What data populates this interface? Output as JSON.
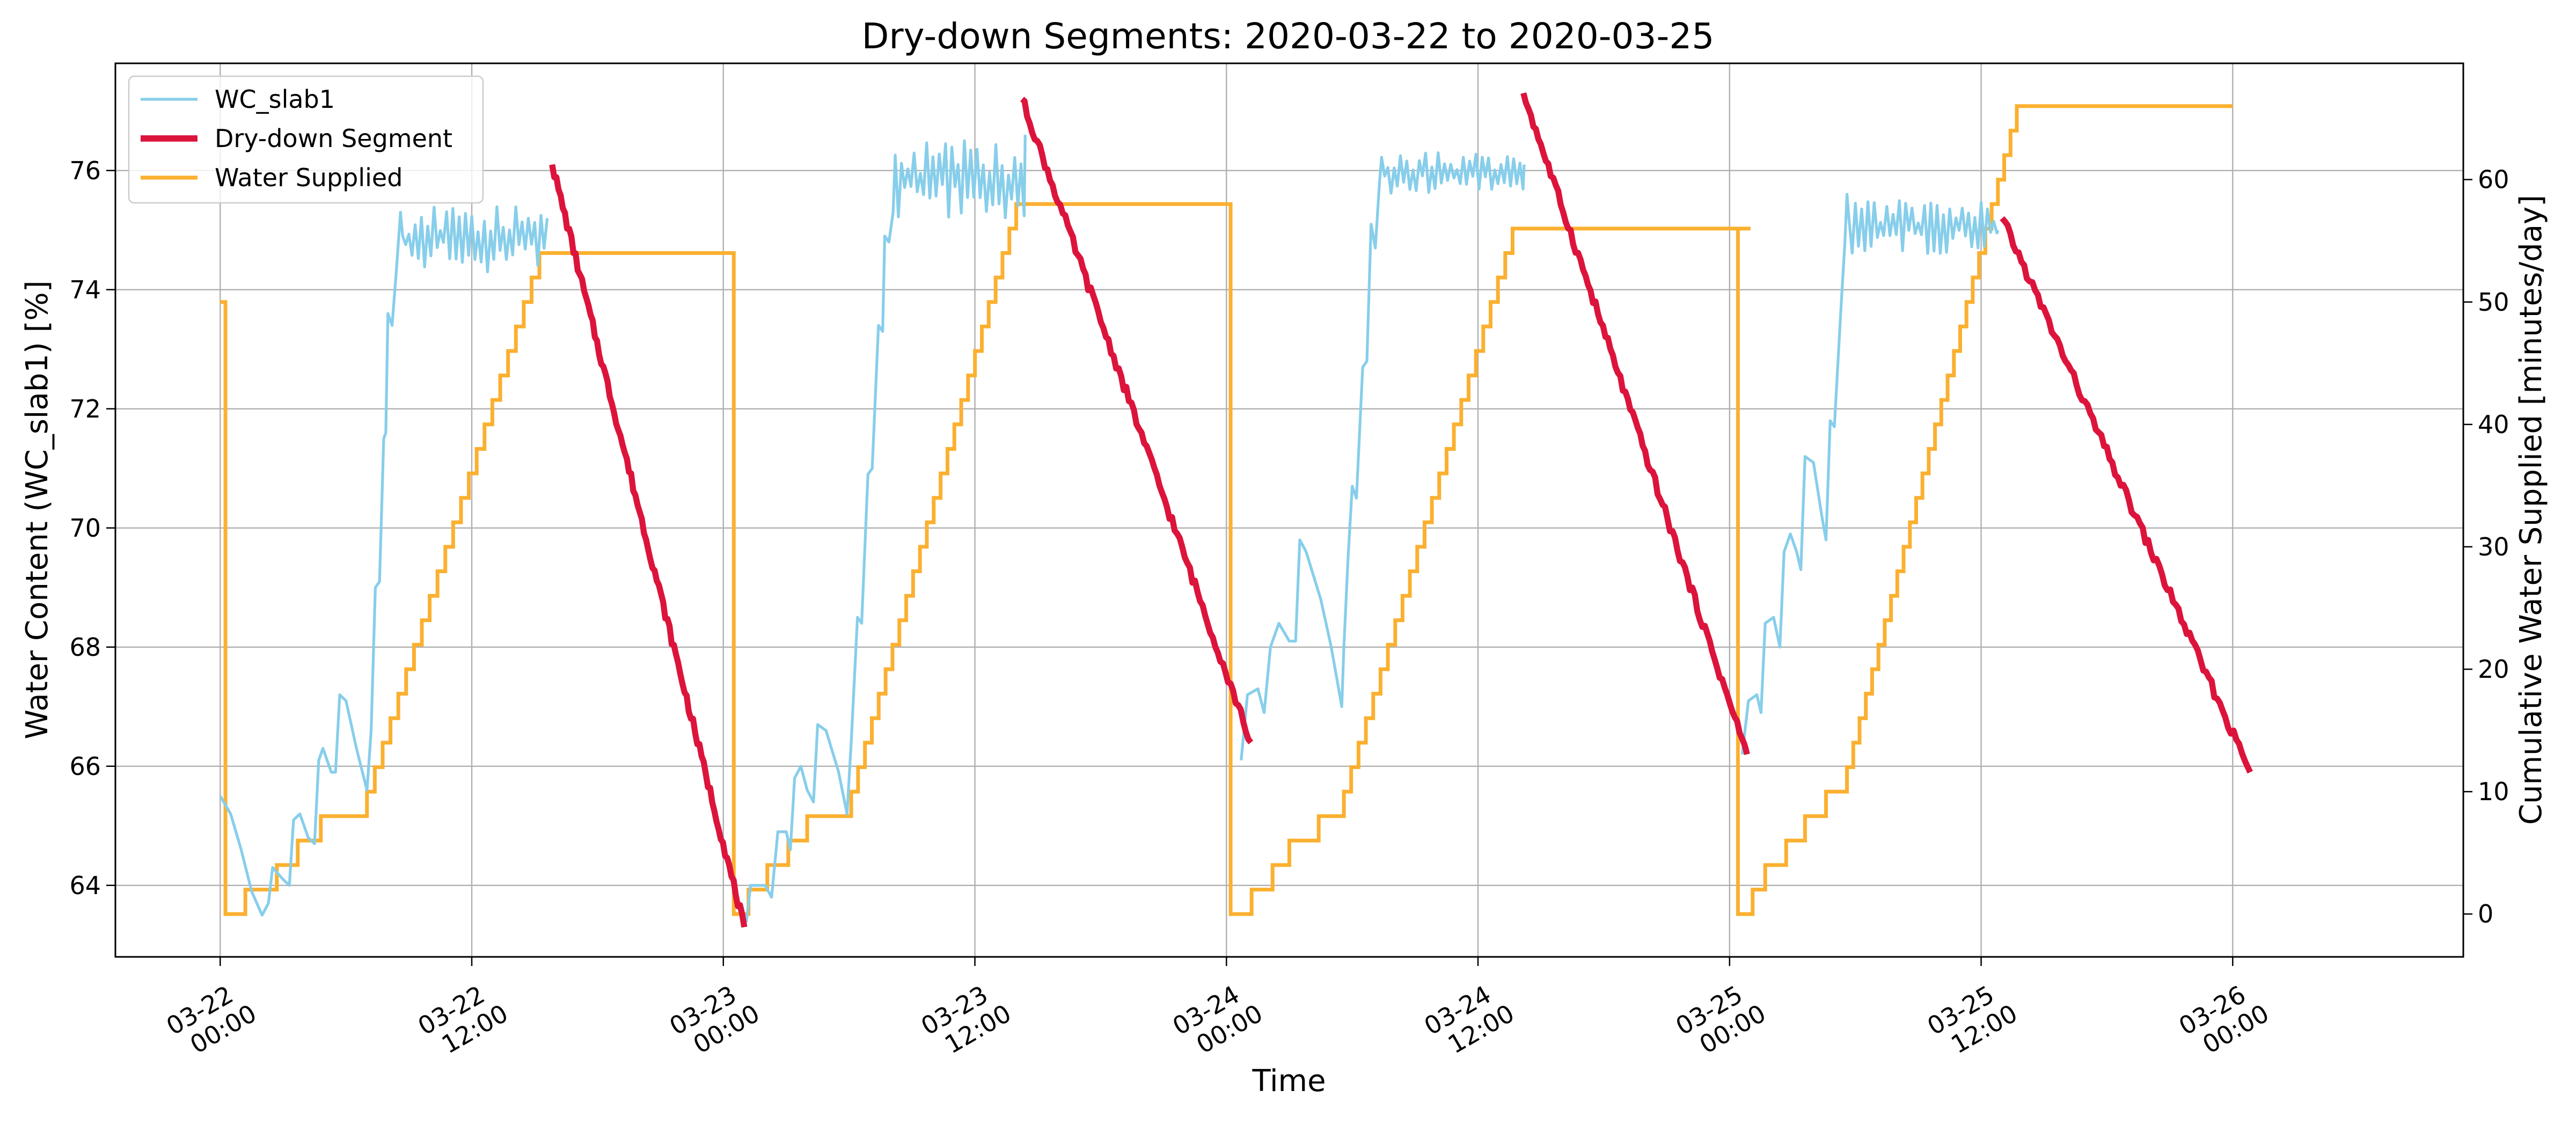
{
  "chart_data": {
    "type": "line",
    "title": "Dry-down Segments: 2020-03-22 to 2020-03-25",
    "xlabel": "Time",
    "ylabel": "Water Content (WC_slab1) [%]",
    "y2label": "Cumulative Water Supplied [minutes/day]",
    "xlim": [
      "2020-03-21 19:00",
      "2020-03-26 11:00"
    ],
    "ylim": [
      62.8,
      77.8
    ],
    "y2lim": [
      -3.5,
      69.5
    ],
    "grid": true,
    "legend_position": "upper-left",
    "x_ticks": [
      {
        "x": "2020-03-22 00:00",
        "label": [
          "03-22",
          "00:00"
        ]
      },
      {
        "x": "2020-03-22 12:00",
        "label": [
          "03-22",
          "12:00"
        ]
      },
      {
        "x": "2020-03-23 00:00",
        "label": [
          "03-23",
          "00:00"
        ]
      },
      {
        "x": "2020-03-23 12:00",
        "label": [
          "03-23",
          "12:00"
        ]
      },
      {
        "x": "2020-03-24 00:00",
        "label": [
          "03-24",
          "00:00"
        ]
      },
      {
        "x": "2020-03-24 12:00",
        "label": [
          "03-24",
          "12:00"
        ]
      },
      {
        "x": "2020-03-25 00:00",
        "label": [
          "03-25",
          "00:00"
        ]
      },
      {
        "x": "2020-03-25 12:00",
        "label": [
          "03-25",
          "12:00"
        ]
      },
      {
        "x": "2020-03-26 00:00",
        "label": [
          "03-26",
          "00:00"
        ]
      }
    ],
    "y_ticks": [
      64,
      66,
      68,
      70,
      72,
      74,
      76
    ],
    "y2_ticks": [
      0,
      10,
      20,
      30,
      40,
      50,
      60
    ],
    "series": [
      {
        "name": "WC_slab1",
        "axis": "left",
        "color": "#87ceeb",
        "line_width": 2,
        "days": [
          {
            "date": "2020-03-22",
            "pts": [
              [
                0,
                65.5
              ],
              [
                0.5,
                65.2
              ],
              [
                1.0,
                64.6
              ],
              [
                1.5,
                63.9
              ],
              [
                2.0,
                63.5
              ],
              [
                2.3,
                63.7
              ],
              [
                2.5,
                64.3
              ],
              [
                3.0,
                64.1
              ],
              [
                3.3,
                64.0
              ],
              [
                3.5,
                65.1
              ],
              [
                3.8,
                65.2
              ],
              [
                4.2,
                64.8
              ],
              [
                4.5,
                64.7
              ],
              [
                4.7,
                66.1
              ],
              [
                4.9,
                66.3
              ],
              [
                5.3,
                65.9
              ],
              [
                5.5,
                65.9
              ],
              [
                5.7,
                67.2
              ],
              [
                6.0,
                67.1
              ],
              [
                6.5,
                66.3
              ],
              [
                7.0,
                65.6
              ],
              [
                7.2,
                66.6
              ],
              [
                7.4,
                69.0
              ],
              [
                7.6,
                69.1
              ],
              [
                7.8,
                71.5
              ],
              [
                7.9,
                71.6
              ],
              [
                8.0,
                73.6
              ],
              [
                8.2,
                73.4
              ],
              [
                8.4,
                74.3
              ],
              [
                8.6,
                75.3
              ]
            ],
            "plateau": {
              "start": 8.7,
              "end": 15.6,
              "low": 74.3,
              "high": 75.4,
              "step": 0.15,
              "final": 75.2
            }
          },
          {
            "date": "2020-03-23",
            "pts": [
              [
                0.9,
                63.3
              ],
              [
                1.1,
                63.4
              ],
              [
                1.3,
                64.0
              ],
              [
                2.0,
                64.0
              ],
              [
                2.3,
                63.8
              ],
              [
                2.6,
                64.9
              ],
              [
                3.0,
                64.9
              ],
              [
                3.2,
                64.6
              ],
              [
                3.4,
                65.8
              ],
              [
                3.7,
                66.0
              ],
              [
                4.0,
                65.6
              ],
              [
                4.3,
                65.4
              ],
              [
                4.5,
                66.7
              ],
              [
                4.9,
                66.6
              ],
              [
                5.5,
                65.9
              ],
              [
                5.9,
                65.2
              ],
              [
                6.1,
                66.4
              ],
              [
                6.4,
                68.5
              ],
              [
                6.6,
                68.4
              ],
              [
                6.9,
                70.9
              ],
              [
                7.1,
                71.0
              ],
              [
                7.4,
                73.4
              ],
              [
                7.6,
                73.3
              ],
              [
                7.7,
                74.9
              ],
              [
                7.9,
                74.8
              ],
              [
                8.1,
                75.3
              ]
            ],
            "plateau": {
              "start": 8.2,
              "end": 14.4,
              "low": 75.2,
              "high": 76.5,
              "step": 0.15,
              "final": 76.6
            }
          },
          {
            "date": "2020-03-24",
            "pts": [
              [
                0.7,
                66.1
              ],
              [
                1.0,
                67.2
              ],
              [
                1.5,
                67.3
              ],
              [
                1.8,
                66.9
              ],
              [
                2.1,
                68.0
              ],
              [
                2.5,
                68.4
              ],
              [
                3.0,
                68.1
              ],
              [
                3.3,
                68.1
              ],
              [
                3.5,
                69.8
              ],
              [
                3.8,
                69.6
              ],
              [
                4.5,
                68.8
              ],
              [
                5.0,
                68.0
              ],
              [
                5.5,
                67.0
              ],
              [
                5.6,
                68.0
              ],
              [
                5.8,
                69.5
              ],
              [
                6.0,
                70.7
              ],
              [
                6.2,
                70.5
              ],
              [
                6.5,
                72.7
              ],
              [
                6.7,
                72.8
              ],
              [
                6.9,
                75.1
              ],
              [
                7.1,
                74.7
              ],
              [
                7.3,
                75.8
              ]
            ],
            "plateau": {
              "start": 7.4,
              "end": 14.2,
              "low": 75.6,
              "high": 76.3,
              "step": 0.15,
              "final": 76.1
            }
          },
          {
            "date": "2020-03-25",
            "pts": [
              [
                0.6,
                66.2
              ],
              [
                0.9,
                67.1
              ],
              [
                1.3,
                67.2
              ],
              [
                1.5,
                66.9
              ],
              [
                1.7,
                68.4
              ],
              [
                2.1,
                68.5
              ],
              [
                2.4,
                68.0
              ],
              [
                2.6,
                69.6
              ],
              [
                2.9,
                69.9
              ],
              [
                3.2,
                69.6
              ],
              [
                3.4,
                69.3
              ],
              [
                3.6,
                71.2
              ],
              [
                4.0,
                71.1
              ],
              [
                4.4,
                70.2
              ],
              [
                4.6,
                69.8
              ],
              [
                4.8,
                71.8
              ],
              [
                5.0,
                71.7
              ],
              [
                5.3,
                73.6
              ],
              [
                5.5,
                74.8
              ],
              [
                5.6,
                75.6
              ]
            ],
            "plateau": {
              "start": 5.7,
              "end": 12.8,
              "low": 74.6,
              "high": 75.5,
              "step": 0.15,
              "final": 75.0
            }
          }
        ]
      },
      {
        "name": "Dry-down Segment",
        "axis": "left",
        "color": "#dc143c",
        "line_width": 4.5,
        "segments": [
          {
            "start": "2020-03-22 15:50",
            "end": "2020-03-23 01:00",
            "from": 76.1,
            "to": 63.3
          },
          {
            "start": "2020-03-23 14:15",
            "end": "2020-03-24 01:10",
            "from": 77.2,
            "to": 66.4
          },
          {
            "start": "2020-03-24 14:10",
            "end": "2020-03-25 00:50",
            "from": 77.3,
            "to": 66.2
          },
          {
            "start": "2020-03-25 13:00",
            "end": "2020-03-26 00:50",
            "from": 75.2,
            "to": 65.9
          }
        ]
      },
      {
        "name": "Water Supplied",
        "axis": "right",
        "color": "#fbb030",
        "line_width": 2.8,
        "start": {
          "x": "2020-03-22 00:00",
          "y": 50
        },
        "days": [
          {
            "date": "2020-03-22",
            "steps": [
              [
                0.25,
                0
              ],
              [
                1.1,
                0
              ],
              [
                1.2,
                2
              ],
              [
                2.6,
                2
              ],
              [
                2.7,
                4
              ],
              [
                3.6,
                4
              ],
              [
                3.7,
                6
              ],
              [
                4.7,
                6
              ],
              [
                4.8,
                8
              ],
              [
                6.9,
                8
              ]
            ],
            "ramp_start": 7.0,
            "ramp_end": 15.6,
            "top": 54,
            "hold_until": 24.5
          },
          {
            "date": "2020-03-23",
            "steps": [
              [
                0.5,
                0
              ],
              [
                1.1,
                0
              ],
              [
                1.2,
                2
              ],
              [
                2.0,
                2
              ],
              [
                2.1,
                4
              ],
              [
                3.0,
                4
              ],
              [
                3.1,
                6
              ],
              [
                3.9,
                6
              ],
              [
                4.0,
                8
              ],
              [
                6.0,
                8
              ]
            ],
            "ramp_start": 6.1,
            "ramp_end": 14.3,
            "top": 58,
            "hold_until": 24.2
          },
          {
            "date": "2020-03-24",
            "steps": [
              [
                0.2,
                0
              ],
              [
                1.1,
                0
              ],
              [
                1.2,
                2
              ],
              [
                2.1,
                2
              ],
              [
                2.2,
                4
              ],
              [
                2.9,
                4
              ],
              [
                3.0,
                6
              ],
              [
                4.3,
                6
              ],
              [
                4.4,
                8
              ],
              [
                5.5,
                8
              ]
            ],
            "ramp_start": 5.6,
            "ramp_end": 14.0,
            "top": 56,
            "hold_until": 25.0
          },
          {
            "date": "2020-03-25",
            "steps": [
              [
                0.4,
                0
              ],
              [
                1.0,
                0
              ],
              [
                1.1,
                2
              ],
              [
                1.6,
                2
              ],
              [
                1.7,
                4
              ],
              [
                2.6,
                4
              ],
              [
                2.7,
                6
              ],
              [
                3.5,
                6
              ],
              [
                3.6,
                8
              ],
              [
                4.5,
                8
              ],
              [
                4.6,
                10
              ],
              [
                5.5,
                10
              ]
            ],
            "ramp_start": 5.6,
            "ramp_end": 14.0,
            "top": 66,
            "hold_until": 24.0
          }
        ]
      }
    ]
  }
}
